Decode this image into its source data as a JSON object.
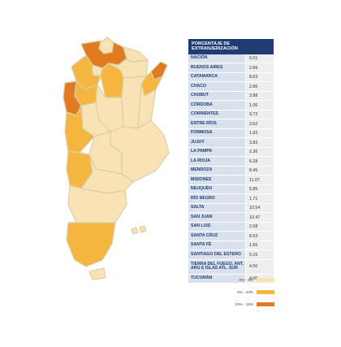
{
  "table": {
    "header": "PORCENTAJE DE EXTRANJERIZACIÓN",
    "rows": [
      {
        "name": "NACIÓN",
        "value": "5.01"
      },
      {
        "name": "BUENOS AIRES",
        "value": "2.89"
      },
      {
        "name": "CATAMARCA",
        "value": "8.63"
      },
      {
        "name": "CHACO",
        "value": "2.86"
      },
      {
        "name": "CHUBUT",
        "value": "3.88"
      },
      {
        "name": "CÓRDOBA",
        "value": "1.06"
      },
      {
        "name": "CORRIENTES",
        "value": "9.72"
      },
      {
        "name": "ENTRE RÍOS",
        "value": "3.62"
      },
      {
        "name": "FORMOSA",
        "value": "1.82"
      },
      {
        "name": "JUJUY",
        "value": "3.83"
      },
      {
        "name": "LA PAMPA",
        "value": "2.36"
      },
      {
        "name": "LA RIOJA",
        "value": "5.28"
      },
      {
        "name": "MENDOZA",
        "value": "8.45"
      },
      {
        "name": "MISIONES",
        "value": "11.07"
      },
      {
        "name": "NEUQUÉN",
        "value": "5.85"
      },
      {
        "name": "RÍO NEGRO",
        "value": "1.71"
      },
      {
        "name": "SALTA",
        "value": "10.54"
      },
      {
        "name": "SAN JUAN",
        "value": "10.47"
      },
      {
        "name": "SAN LUIS",
        "value": "2.58"
      },
      {
        "name": "SANTA CRUZ",
        "value": "8.53"
      },
      {
        "name": "SANTA FÉ",
        "value": "1.66"
      },
      {
        "name": "SANTIAGO DEL ESTERO",
        "value": "5.15"
      },
      {
        "name": "TIERRA DEL FUEGO, ANT. ARG E ISLAS ATL. SUR",
        "value": "4.50"
      },
      {
        "name": "TUCUMÁN",
        "value": "4.00"
      }
    ]
  },
  "legend": [
    {
      "label": "0% - 5%",
      "color": "#f9e2b3"
    },
    {
      "label": "5% - 10%",
      "color": "#f5b640"
    },
    {
      "label": "10% - 15%",
      "color": "#e07b22"
    }
  ],
  "chart_data": {
    "type": "table",
    "title": "PORCENTAJE DE EXTRANJERIZACIÓN",
    "categories": [
      "NACIÓN",
      "BUENOS AIRES",
      "CATAMARCA",
      "CHACO",
      "CHUBUT",
      "CÓRDOBA",
      "CORRIENTES",
      "ENTRE RÍOS",
      "FORMOSA",
      "JUJUY",
      "LA PAMPA",
      "LA RIOJA",
      "MENDOZA",
      "MISIONES",
      "NEUQUÉN",
      "RÍO NEGRO",
      "SALTA",
      "SAN JUAN",
      "SAN LUIS",
      "SANTA CRUZ",
      "SANTA FÉ",
      "SANTIAGO DEL ESTERO",
      "TIERRA DEL FUEGO, ANT. ARG E ISLAS ATL. SUR",
      "TUCUMÁN"
    ],
    "values": [
      5.01,
      2.89,
      8.63,
      2.86,
      3.88,
      1.06,
      9.72,
      3.62,
      1.82,
      3.83,
      2.36,
      5.28,
      8.45,
      11.07,
      5.85,
      1.71,
      10.54,
      10.47,
      2.58,
      8.53,
      1.66,
      5.15,
      4.5,
      4.0
    ],
    "color_scale": [
      {
        "range": "0% - 5%",
        "color": "#f9e2b3"
      },
      {
        "range": "5% - 10%",
        "color": "#f5b640"
      },
      {
        "range": "10% - 15%",
        "color": "#e07b22"
      }
    ]
  }
}
